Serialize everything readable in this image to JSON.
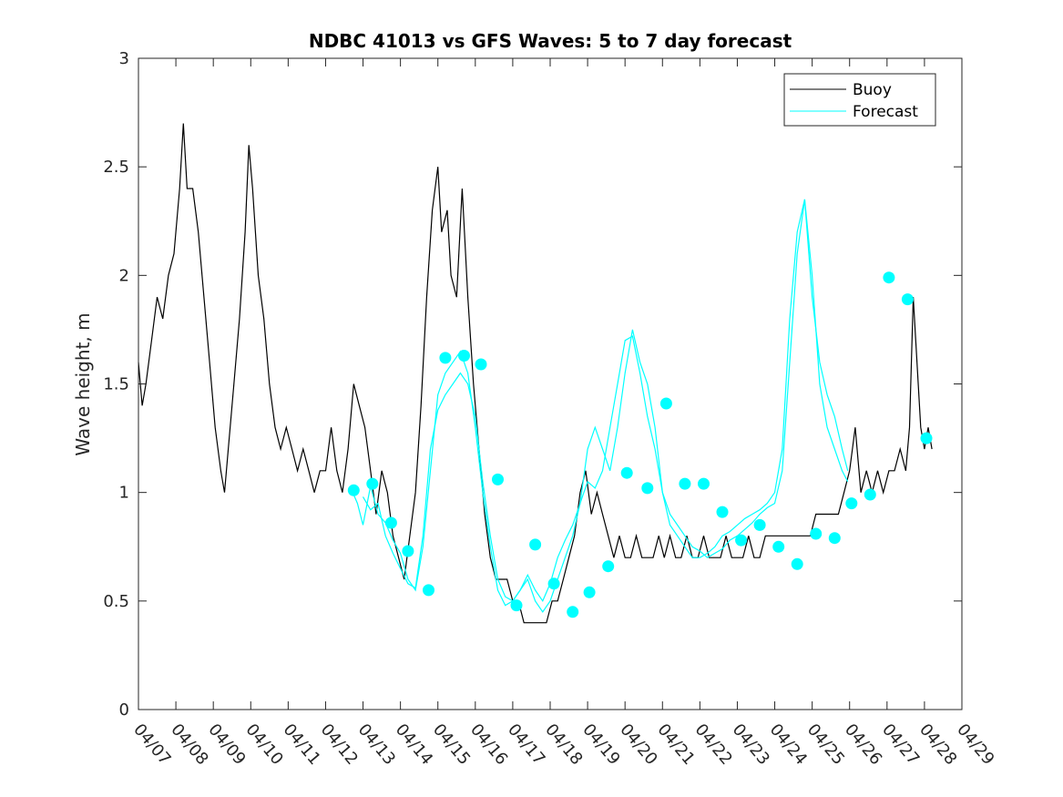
{
  "chart_data": {
    "type": "line",
    "title": "NDBC 41013 vs GFS Waves: 5 to 7 day forecast",
    "xlabel": "",
    "ylabel": "Wave height, m",
    "x_ticks": [
      "04/07",
      "04/08",
      "04/09",
      "04/10",
      "04/11",
      "04/12",
      "04/13",
      "04/14",
      "04/15",
      "04/16",
      "04/17",
      "04/18",
      "04/19",
      "04/20",
      "04/21",
      "04/22",
      "04/23",
      "04/24",
      "04/25",
      "04/26",
      "04/27",
      "04/28",
      "04/29"
    ],
    "xlim": [
      "04/07",
      "04/29"
    ],
    "ylim": [
      0,
      3
    ],
    "y_ticks": [
      "0",
      "0.5",
      "1",
      "1.5",
      "2",
      "2.5",
      "3"
    ],
    "grid": false,
    "legend": {
      "position": "top-right",
      "entries": [
        {
          "label": "Buoy",
          "color": "#000000"
        },
        {
          "label": "Forecast",
          "color": "#00ffff"
        }
      ]
    },
    "series": [
      {
        "name": "Buoy",
        "color": "#000000",
        "points": [
          [
            0.0,
            1.6
          ],
          [
            0.1,
            1.4
          ],
          [
            0.2,
            1.5
          ],
          [
            0.35,
            1.7
          ],
          [
            0.5,
            1.9
          ],
          [
            0.65,
            1.8
          ],
          [
            0.8,
            2.0
          ],
          [
            0.95,
            2.1
          ],
          [
            1.1,
            2.4
          ],
          [
            1.2,
            2.7
          ],
          [
            1.3,
            2.4
          ],
          [
            1.45,
            2.4
          ],
          [
            1.6,
            2.2
          ],
          [
            1.75,
            1.9
          ],
          [
            1.9,
            1.6
          ],
          [
            2.05,
            1.3
          ],
          [
            2.2,
            1.1
          ],
          [
            2.3,
            1.0
          ],
          [
            2.4,
            1.2
          ],
          [
            2.55,
            1.5
          ],
          [
            2.7,
            1.8
          ],
          [
            2.85,
            2.2
          ],
          [
            2.95,
            2.6
          ],
          [
            3.05,
            2.4
          ],
          [
            3.2,
            2.0
          ],
          [
            3.35,
            1.8
          ],
          [
            3.5,
            1.5
          ],
          [
            3.65,
            1.3
          ],
          [
            3.8,
            1.2
          ],
          [
            3.95,
            1.3
          ],
          [
            4.1,
            1.2
          ],
          [
            4.25,
            1.1
          ],
          [
            4.4,
            1.2
          ],
          [
            4.55,
            1.1
          ],
          [
            4.7,
            1.0
          ],
          [
            4.85,
            1.1
          ],
          [
            5.0,
            1.1
          ],
          [
            5.15,
            1.3
          ],
          [
            5.3,
            1.1
          ],
          [
            5.45,
            1.0
          ],
          [
            5.6,
            1.2
          ],
          [
            5.75,
            1.5
          ],
          [
            5.9,
            1.4
          ],
          [
            6.05,
            1.3
          ],
          [
            6.2,
            1.1
          ],
          [
            6.35,
            0.9
          ],
          [
            6.5,
            1.1
          ],
          [
            6.65,
            1.0
          ],
          [
            6.8,
            0.8
          ],
          [
            6.95,
            0.7
          ],
          [
            7.1,
            0.6
          ],
          [
            7.25,
            0.8
          ],
          [
            7.4,
            1.0
          ],
          [
            7.55,
            1.4
          ],
          [
            7.7,
            1.9
          ],
          [
            7.85,
            2.3
          ],
          [
            8.0,
            2.5
          ],
          [
            8.1,
            2.2
          ],
          [
            8.25,
            2.3
          ],
          [
            8.35,
            2.0
          ],
          [
            8.5,
            1.9
          ],
          [
            8.65,
            2.4
          ],
          [
            8.8,
            1.9
          ],
          [
            8.95,
            1.5
          ],
          [
            9.1,
            1.2
          ],
          [
            9.25,
            0.9
          ],
          [
            9.4,
            0.7
          ],
          [
            9.55,
            0.6
          ],
          [
            9.7,
            0.6
          ],
          [
            9.85,
            0.6
          ],
          [
            10.0,
            0.5
          ],
          [
            10.15,
            0.5
          ],
          [
            10.3,
            0.4
          ],
          [
            10.5,
            0.4
          ],
          [
            10.7,
            0.4
          ],
          [
            10.9,
            0.4
          ],
          [
            11.05,
            0.5
          ],
          [
            11.2,
            0.5
          ],
          [
            11.35,
            0.6
          ],
          [
            11.5,
            0.7
          ],
          [
            11.65,
            0.8
          ],
          [
            11.8,
            1.0
          ],
          [
            11.95,
            1.1
          ],
          [
            12.1,
            0.9
          ],
          [
            12.25,
            1.0
          ],
          [
            12.4,
            0.9
          ],
          [
            12.55,
            0.8
          ],
          [
            12.7,
            0.7
          ],
          [
            12.85,
            0.8
          ],
          [
            13.0,
            0.7
          ],
          [
            13.15,
            0.7
          ],
          [
            13.3,
            0.8
          ],
          [
            13.45,
            0.7
          ],
          [
            13.6,
            0.7
          ],
          [
            13.75,
            0.7
          ],
          [
            13.9,
            0.8
          ],
          [
            14.05,
            0.7
          ],
          [
            14.2,
            0.8
          ],
          [
            14.35,
            0.7
          ],
          [
            14.5,
            0.7
          ],
          [
            14.65,
            0.8
          ],
          [
            14.8,
            0.7
          ],
          [
            14.95,
            0.7
          ],
          [
            15.1,
            0.8
          ],
          [
            15.25,
            0.7
          ],
          [
            15.4,
            0.7
          ],
          [
            15.55,
            0.7
          ],
          [
            15.7,
            0.8
          ],
          [
            15.85,
            0.7
          ],
          [
            16.0,
            0.7
          ],
          [
            16.15,
            0.7
          ],
          [
            16.3,
            0.8
          ],
          [
            16.45,
            0.7
          ],
          [
            16.6,
            0.7
          ],
          [
            16.75,
            0.8
          ],
          [
            16.9,
            0.8
          ],
          [
            17.05,
            0.8
          ],
          [
            17.2,
            0.8
          ],
          [
            17.35,
            0.8
          ],
          [
            17.5,
            0.8
          ],
          [
            17.65,
            0.8
          ],
          [
            17.8,
            0.8
          ],
          [
            17.95,
            0.8
          ],
          [
            18.1,
            0.9
          ],
          [
            18.25,
            0.9
          ],
          [
            18.4,
            0.9
          ],
          [
            18.55,
            0.9
          ],
          [
            18.7,
            0.9
          ],
          [
            18.85,
            1.0
          ],
          [
            19.0,
            1.1
          ],
          [
            19.15,
            1.3
          ],
          [
            19.3,
            1.0
          ],
          [
            19.45,
            1.1
          ],
          [
            19.6,
            1.0
          ],
          [
            19.75,
            1.1
          ],
          [
            19.9,
            1.0
          ],
          [
            20.05,
            1.1
          ],
          [
            20.2,
            1.1
          ],
          [
            20.35,
            1.2
          ],
          [
            20.5,
            1.1
          ],
          [
            20.6,
            1.3
          ],
          [
            20.7,
            1.9
          ],
          [
            20.8,
            1.6
          ],
          [
            20.9,
            1.3
          ],
          [
            21.0,
            1.2
          ],
          [
            21.1,
            1.3
          ],
          [
            21.2,
            1.2
          ]
        ]
      },
      {
        "name": "Forecast",
        "color": "#00ffff",
        "points": [
          [
            5.7,
            1.01
          ],
          [
            5.85,
            0.95
          ],
          [
            6.0,
            0.85
          ],
          [
            6.2,
            1.03
          ],
          [
            6.4,
            0.9
          ],
          [
            6.6,
            0.86
          ],
          [
            6.8,
            0.78
          ],
          [
            7.0,
            0.72
          ],
          [
            7.2,
            0.6
          ],
          [
            7.4,
            0.55
          ],
          [
            7.6,
            0.75
          ],
          [
            7.8,
            1.1
          ],
          [
            8.0,
            1.45
          ],
          [
            8.2,
            1.55
          ],
          [
            8.4,
            1.6
          ],
          [
            8.6,
            1.65
          ],
          [
            8.8,
            1.55
          ],
          [
            9.0,
            1.3
          ],
          [
            9.2,
            1.0
          ],
          [
            9.4,
            0.75
          ],
          [
            9.6,
            0.55
          ],
          [
            9.8,
            0.48
          ],
          [
            10.0,
            0.5
          ],
          [
            10.2,
            0.55
          ],
          [
            10.4,
            0.6
          ],
          [
            10.6,
            0.5
          ],
          [
            10.8,
            0.45
          ],
          [
            11.0,
            0.5
          ],
          [
            11.2,
            0.6
          ],
          [
            11.4,
            0.7
          ],
          [
            11.6,
            0.8
          ],
          [
            11.8,
            0.95
          ],
          [
            12.0,
            1.2
          ],
          [
            12.2,
            1.3
          ],
          [
            12.4,
            1.2
          ],
          [
            12.6,
            1.1
          ],
          [
            12.8,
            1.3
          ],
          [
            13.0,
            1.55
          ],
          [
            13.2,
            1.75
          ],
          [
            13.4,
            1.6
          ],
          [
            13.6,
            1.5
          ],
          [
            13.8,
            1.3
          ],
          [
            14.0,
            1.0
          ],
          [
            14.2,
            0.85
          ],
          [
            14.4,
            0.8
          ],
          [
            14.6,
            0.75
          ],
          [
            14.8,
            0.7
          ],
          [
            15.0,
            0.7
          ],
          [
            15.2,
            0.72
          ],
          [
            15.4,
            0.75
          ],
          [
            15.6,
            0.8
          ],
          [
            15.8,
            0.82
          ],
          [
            16.0,
            0.85
          ],
          [
            16.2,
            0.88
          ],
          [
            16.4,
            0.9
          ],
          [
            16.6,
            0.92
          ],
          [
            16.8,
            0.95
          ],
          [
            17.0,
            1.0
          ],
          [
            17.2,
            1.2
          ],
          [
            17.4,
            1.8
          ],
          [
            17.6,
            2.2
          ],
          [
            17.8,
            2.35
          ],
          [
            18.0,
            2.0
          ],
          [
            18.2,
            1.5
          ],
          [
            18.4,
            1.3
          ],
          [
            18.6,
            1.2
          ],
          [
            18.8,
            1.1
          ],
          [
            18.95,
            1.05
          ]
        ]
      },
      {
        "name": "Forecast",
        "color": "#00ffff",
        "points": [
          [
            6.0,
            0.98
          ],
          [
            6.2,
            0.92
          ],
          [
            6.4,
            0.95
          ],
          [
            6.6,
            0.8
          ],
          [
            6.8,
            0.72
          ],
          [
            7.0,
            0.65
          ],
          [
            7.2,
            0.58
          ],
          [
            7.4,
            0.56
          ],
          [
            7.6,
            0.8
          ],
          [
            7.8,
            1.2
          ],
          [
            8.0,
            1.38
          ],
          [
            8.2,
            1.45
          ],
          [
            8.4,
            1.5
          ],
          [
            8.6,
            1.55
          ],
          [
            8.8,
            1.5
          ],
          [
            9.0,
            1.35
          ],
          [
            9.2,
            1.05
          ],
          [
            9.4,
            0.8
          ],
          [
            9.6,
            0.6
          ],
          [
            9.8,
            0.52
          ],
          [
            10.0,
            0.5
          ],
          [
            10.2,
            0.55
          ],
          [
            10.4,
            0.62
          ],
          [
            10.6,
            0.55
          ],
          [
            10.8,
            0.5
          ],
          [
            11.0,
            0.58
          ],
          [
            11.2,
            0.7
          ],
          [
            11.4,
            0.78
          ],
          [
            11.6,
            0.85
          ],
          [
            11.8,
            0.95
          ],
          [
            12.0,
            1.05
          ],
          [
            12.2,
            1.02
          ],
          [
            12.4,
            1.1
          ],
          [
            12.6,
            1.3
          ],
          [
            12.8,
            1.5
          ],
          [
            13.0,
            1.7
          ],
          [
            13.2,
            1.72
          ],
          [
            13.4,
            1.55
          ],
          [
            13.6,
            1.35
          ],
          [
            13.8,
            1.2
          ],
          [
            14.0,
            1.0
          ],
          [
            14.2,
            0.9
          ],
          [
            14.4,
            0.85
          ],
          [
            14.6,
            0.8
          ],
          [
            14.8,
            0.75
          ],
          [
            15.0,
            0.73
          ],
          [
            15.2,
            0.7
          ],
          [
            15.4,
            0.72
          ],
          [
            15.6,
            0.74
          ],
          [
            15.8,
            0.78
          ],
          [
            16.0,
            0.8
          ],
          [
            16.2,
            0.83
          ],
          [
            16.4,
            0.86
          ],
          [
            16.6,
            0.9
          ],
          [
            16.8,
            0.93
          ],
          [
            17.0,
            0.95
          ],
          [
            17.2,
            1.1
          ],
          [
            17.4,
            1.6
          ],
          [
            17.6,
            2.1
          ],
          [
            17.8,
            2.35
          ],
          [
            18.0,
            1.9
          ],
          [
            18.2,
            1.6
          ],
          [
            18.4,
            1.45
          ],
          [
            18.6,
            1.35
          ],
          [
            18.8,
            1.2
          ],
          [
            18.95,
            1.1
          ]
        ]
      }
    ],
    "markers": {
      "name": "Forecast",
      "color": "#00ffff",
      "points": [
        [
          5.75,
          1.01
        ],
        [
          6.25,
          1.04
        ],
        [
          6.75,
          0.86
        ],
        [
          7.2,
          0.73
        ],
        [
          7.75,
          0.55
        ],
        [
          8.2,
          1.62
        ],
        [
          8.7,
          1.63
        ],
        [
          9.15,
          1.59
        ],
        [
          9.6,
          1.06
        ],
        [
          10.1,
          0.48
        ],
        [
          10.6,
          0.76
        ],
        [
          11.1,
          0.58
        ],
        [
          11.6,
          0.45
        ],
        [
          12.05,
          0.54
        ],
        [
          12.55,
          0.66
        ],
        [
          13.05,
          1.09
        ],
        [
          13.6,
          1.02
        ],
        [
          14.1,
          1.41
        ],
        [
          14.6,
          1.04
        ],
        [
          15.1,
          1.04
        ],
        [
          15.6,
          0.91
        ],
        [
          16.1,
          0.78
        ],
        [
          16.6,
          0.85
        ],
        [
          17.1,
          0.75
        ],
        [
          17.6,
          0.67
        ],
        [
          18.1,
          0.81
        ],
        [
          18.6,
          0.79
        ],
        [
          19.05,
          0.95
        ],
        [
          19.55,
          0.99
        ],
        [
          20.05,
          1.99
        ],
        [
          20.55,
          1.89
        ],
        [
          21.05,
          1.25
        ]
      ]
    }
  }
}
